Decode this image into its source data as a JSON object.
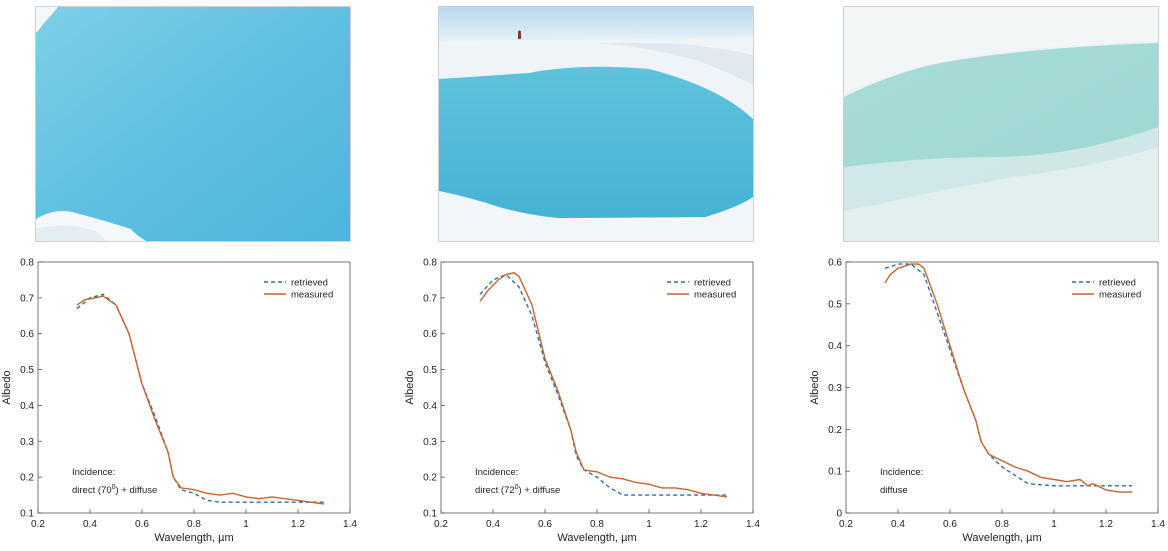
{
  "legend": {
    "retrieved": "retrieved",
    "measured": "measured"
  },
  "colors": {
    "retrieved": "#2a6fb3",
    "measured": "#c8642e",
    "axis": "#333333"
  },
  "photos": [
    {
      "name": "melt-pond-closeup-photo"
    },
    {
      "name": "melt-pond-with-figure-photo"
    },
    {
      "name": "melt-pond-overcast-photo"
    }
  ],
  "chart_data": [
    {
      "type": "line",
      "xlabel": "Wavelength, µm",
      "ylabel": "Albedo",
      "xlim": [
        0.2,
        1.4
      ],
      "ylim": [
        0.1,
        0.8
      ],
      "xticks": [
        0.2,
        0.4,
        0.6,
        0.8,
        1,
        1.2,
        1.4
      ],
      "yticks": [
        0.1,
        0.2,
        0.3,
        0.4,
        0.5,
        0.6,
        0.7,
        0.8
      ],
      "annotation": [
        "Incidence:",
        "direct (70",
        "0",
        ") + diffuse"
      ],
      "legend_position": "top-right",
      "series": [
        {
          "name": "retrieved",
          "style": "dashed",
          "x": [
            0.35,
            0.4,
            0.45,
            0.5,
            0.55,
            0.6,
            0.65,
            0.7,
            0.72,
            0.75,
            0.8,
            0.85,
            0.9,
            1.0,
            1.1,
            1.2,
            1.3
          ],
          "y": [
            0.67,
            0.7,
            0.71,
            0.68,
            0.6,
            0.46,
            0.37,
            0.27,
            0.2,
            0.165,
            0.155,
            0.135,
            0.13,
            0.13,
            0.13,
            0.13,
            0.13
          ]
        },
        {
          "name": "measured",
          "style": "solid",
          "x": [
            0.35,
            0.38,
            0.42,
            0.45,
            0.5,
            0.55,
            0.6,
            0.65,
            0.7,
            0.72,
            0.75,
            0.8,
            0.85,
            0.9,
            0.95,
            1.0,
            1.05,
            1.1,
            1.15,
            1.2,
            1.25,
            1.3
          ],
          "y": [
            0.68,
            0.695,
            0.7,
            0.705,
            0.68,
            0.6,
            0.46,
            0.36,
            0.27,
            0.2,
            0.17,
            0.165,
            0.155,
            0.15,
            0.155,
            0.145,
            0.14,
            0.145,
            0.14,
            0.135,
            0.13,
            0.125
          ]
        }
      ]
    },
    {
      "type": "line",
      "xlabel": "Wavelength, µm",
      "ylabel": "Albedo",
      "xlim": [
        0.2,
        1.4
      ],
      "ylim": [
        0.1,
        0.8
      ],
      "xticks": [
        0.2,
        0.4,
        0.6,
        0.8,
        1,
        1.2,
        1.4
      ],
      "yticks": [
        0.1,
        0.2,
        0.3,
        0.4,
        0.5,
        0.6,
        0.7,
        0.8
      ],
      "annotation": [
        "Incidence:",
        "direct (72",
        "0",
        ") + diffuse"
      ],
      "legend_position": "top-right",
      "series": [
        {
          "name": "retrieved",
          "style": "dashed",
          "x": [
            0.35,
            0.4,
            0.45,
            0.5,
            0.55,
            0.6,
            0.65,
            0.7,
            0.72,
            0.75,
            0.8,
            0.85,
            0.9,
            1.0,
            1.1,
            1.2,
            1.3
          ],
          "y": [
            0.71,
            0.75,
            0.765,
            0.73,
            0.65,
            0.52,
            0.43,
            0.33,
            0.26,
            0.22,
            0.2,
            0.17,
            0.15,
            0.15,
            0.15,
            0.15,
            0.15
          ]
        },
        {
          "name": "measured",
          "style": "solid",
          "x": [
            0.35,
            0.38,
            0.42,
            0.45,
            0.48,
            0.5,
            0.55,
            0.6,
            0.65,
            0.7,
            0.72,
            0.75,
            0.8,
            0.85,
            0.9,
            0.95,
            1.0,
            1.05,
            1.1,
            1.15,
            1.2,
            1.25,
            1.3
          ],
          "y": [
            0.69,
            0.72,
            0.75,
            0.765,
            0.77,
            0.76,
            0.68,
            0.53,
            0.44,
            0.33,
            0.27,
            0.22,
            0.215,
            0.2,
            0.195,
            0.185,
            0.18,
            0.17,
            0.17,
            0.165,
            0.155,
            0.15,
            0.145
          ]
        }
      ]
    },
    {
      "type": "line",
      "xlabel": "Wavelength, µm",
      "ylabel": "Albedo",
      "xlim": [
        0.2,
        1.4
      ],
      "ylim": [
        0,
        0.6
      ],
      "xticks": [
        0.2,
        0.4,
        0.6,
        0.8,
        1,
        1.2,
        1.4
      ],
      "yticks": [
        0,
        0.1,
        0.2,
        0.3,
        0.4,
        0.5,
        0.6
      ],
      "annotation": [
        "Incidence:",
        "diffuse"
      ],
      "legend_position": "top-right",
      "series": [
        {
          "name": "retrieved",
          "style": "dashed",
          "x": [
            0.35,
            0.4,
            0.45,
            0.5,
            0.55,
            0.6,
            0.65,
            0.7,
            0.72,
            0.75,
            0.8,
            0.85,
            0.9,
            1.0,
            1.1,
            1.2,
            1.3
          ],
          "y": [
            0.585,
            0.595,
            0.595,
            0.57,
            0.48,
            0.39,
            0.3,
            0.22,
            0.17,
            0.14,
            0.11,
            0.09,
            0.07,
            0.065,
            0.065,
            0.065,
            0.065
          ]
        },
        {
          "name": "measured",
          "style": "solid",
          "x": [
            0.35,
            0.37,
            0.4,
            0.45,
            0.48,
            0.5,
            0.55,
            0.6,
            0.65,
            0.7,
            0.72,
            0.75,
            0.8,
            0.85,
            0.9,
            0.95,
            1.0,
            1.05,
            1.1,
            1.13,
            1.15,
            1.2,
            1.25,
            1.3
          ],
          "y": [
            0.55,
            0.57,
            0.585,
            0.595,
            0.595,
            0.585,
            0.5,
            0.4,
            0.3,
            0.22,
            0.17,
            0.14,
            0.125,
            0.11,
            0.1,
            0.085,
            0.08,
            0.075,
            0.08,
            0.065,
            0.07,
            0.055,
            0.05,
            0.05
          ]
        }
      ]
    }
  ]
}
